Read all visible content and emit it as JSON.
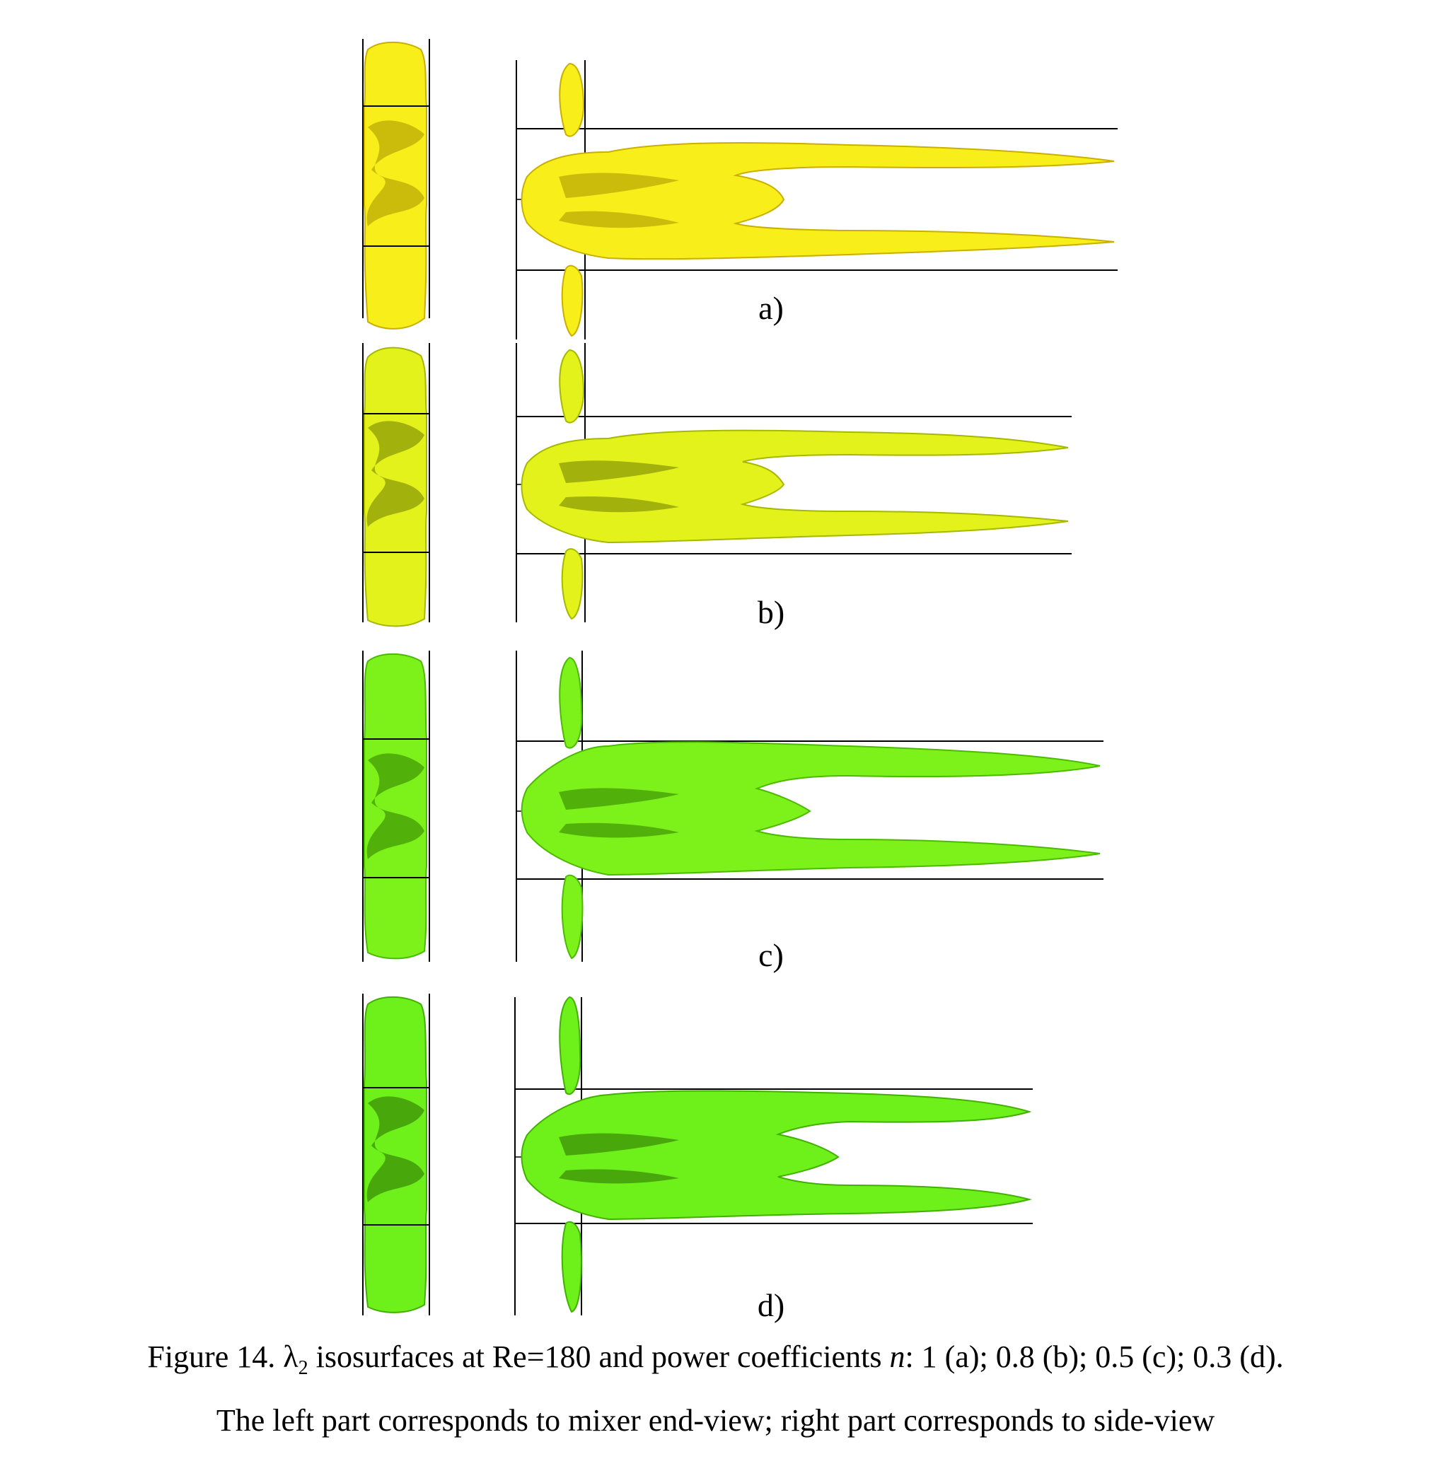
{
  "figure": {
    "panels": [
      {
        "id": "a",
        "label": "a)",
        "power_coefficient_n": "1",
        "fill": "#f7ee1a",
        "edge": "#c9b000",
        "shade": "#a89200"
      },
      {
        "id": "b",
        "label": "b)",
        "power_coefficient_n": "0.8",
        "fill": "#e2f21a",
        "edge": "#a6b800",
        "shade": "#6e7c00"
      },
      {
        "id": "c",
        "label": "c)",
        "power_coefficient_n": "0.5",
        "fill": "#7cf21a",
        "edge": "#4cba00",
        "shade": "#2f7a00"
      },
      {
        "id": "d",
        "label": "d)",
        "power_coefficient_n": "0.3",
        "fill": "#6ef01a",
        "edge": "#42b000",
        "shade": "#2a6e00"
      }
    ],
    "caption": {
      "prefix": "Figure 14. ",
      "lambda": "λ",
      "lambda_sub": "2",
      "line1_rest": " isosurfaces at Re=180 and power coefficients ",
      "n_symbol": "n",
      "line1_values": ": 1 (a); 0.8 (b); 0.5 (c); 0.3 (d).",
      "line2": "The left part corresponds to mixer end-view; right part corresponds to side-view"
    }
  }
}
